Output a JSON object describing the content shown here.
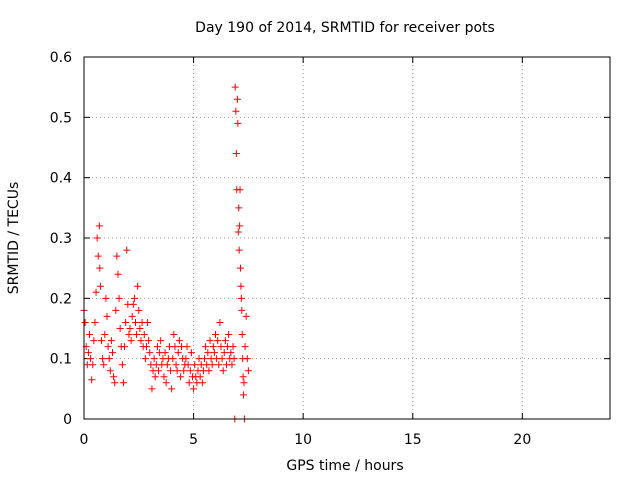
{
  "chart_data": {
    "type": "scatter",
    "title": "Day 190 of 2014, SRMTID for receiver pots",
    "xlabel": "GPS time / hours",
    "ylabel": "SRMTID / TECUs",
    "xlim": [
      0,
      24
    ],
    "ylim": [
      0,
      0.6
    ],
    "xticks": [
      "0",
      "5",
      "10",
      "15",
      "20"
    ],
    "yticks": [
      "0",
      "0.1",
      "0.2",
      "0.3",
      "0.4",
      "0.5",
      "0.6"
    ],
    "grid": true,
    "marker": "+",
    "color": "#ff0000",
    "series": [
      {
        "name": "pots",
        "points": [
          [
            0.0,
            0.18
          ],
          [
            0.05,
            0.16
          ],
          [
            0.1,
            0.12
          ],
          [
            0.15,
            0.09
          ],
          [
            0.2,
            0.11
          ],
          [
            0.25,
            0.14
          ],
          [
            0.3,
            0.1
          ],
          [
            0.35,
            0.065
          ],
          [
            0.4,
            0.09
          ],
          [
            0.45,
            0.13
          ],
          [
            0.5,
            0.16
          ],
          [
            0.55,
            0.21
          ],
          [
            0.6,
            0.3
          ],
          [
            0.65,
            0.27
          ],
          [
            0.7,
            0.32
          ],
          [
            0.72,
            0.25
          ],
          [
            0.75,
            0.22
          ],
          [
            0.8,
            0.13
          ],
          [
            0.85,
            0.1
          ],
          [
            0.9,
            0.09
          ],
          [
            0.95,
            0.14
          ],
          [
            1.0,
            0.2
          ],
          [
            1.05,
            0.17
          ],
          [
            1.1,
            0.12
          ],
          [
            1.15,
            0.1
          ],
          [
            1.2,
            0.08
          ],
          [
            1.25,
            0.13
          ],
          [
            1.3,
            0.11
          ],
          [
            1.35,
            0.07
          ],
          [
            1.4,
            0.06
          ],
          [
            1.45,
            0.18
          ],
          [
            1.5,
            0.27
          ],
          [
            1.55,
            0.24
          ],
          [
            1.6,
            0.2
          ],
          [
            1.65,
            0.15
          ],
          [
            1.7,
            0.12
          ],
          [
            1.75,
            0.09
          ],
          [
            1.8,
            0.06
          ],
          [
            1.85,
            0.12
          ],
          [
            1.9,
            0.16
          ],
          [
            1.95,
            0.28
          ],
          [
            2.0,
            0.19
          ],
          [
            2.05,
            0.14
          ],
          [
            2.1,
            0.15
          ],
          [
            2.15,
            0.13
          ],
          [
            2.2,
            0.17
          ],
          [
            2.25,
            0.19
          ],
          [
            2.3,
            0.2
          ],
          [
            2.35,
            0.16
          ],
          [
            2.4,
            0.14
          ],
          [
            2.45,
            0.22
          ],
          [
            2.5,
            0.18
          ],
          [
            2.55,
            0.15
          ],
          [
            2.6,
            0.13
          ],
          [
            2.65,
            0.16
          ],
          [
            2.7,
            0.12
          ],
          [
            2.75,
            0.14
          ],
          [
            2.8,
            0.1
          ],
          [
            2.85,
            0.12
          ],
          [
            2.9,
            0.16
          ],
          [
            2.95,
            0.13
          ],
          [
            3.0,
            0.11
          ],
          [
            3.05,
            0.09
          ],
          [
            3.1,
            0.05
          ],
          [
            3.15,
            0.08
          ],
          [
            3.2,
            0.1
          ],
          [
            3.25,
            0.07
          ],
          [
            3.3,
            0.09
          ],
          [
            3.35,
            0.12
          ],
          [
            3.4,
            0.08
          ],
          [
            3.45,
            0.11
          ],
          [
            3.5,
            0.13
          ],
          [
            3.55,
            0.09
          ],
          [
            3.6,
            0.1
          ],
          [
            3.65,
            0.07
          ],
          [
            3.7,
            0.11
          ],
          [
            3.75,
            0.06
          ],
          [
            3.8,
            0.09
          ],
          [
            3.85,
            0.1
          ],
          [
            3.9,
            0.12
          ],
          [
            3.95,
            0.08
          ],
          [
            4.0,
            0.05
          ],
          [
            4.05,
            0.1
          ],
          [
            4.1,
            0.14
          ],
          [
            4.15,
            0.12
          ],
          [
            4.2,
            0.09
          ],
          [
            4.25,
            0.08
          ],
          [
            4.3,
            0.11
          ],
          [
            4.35,
            0.13
          ],
          [
            4.4,
            0.07
          ],
          [
            4.45,
            0.12
          ],
          [
            4.5,
            0.1
          ],
          [
            4.55,
            0.08
          ],
          [
            4.6,
            0.09
          ],
          [
            4.65,
            0.1
          ],
          [
            4.7,
            0.12
          ],
          [
            4.75,
            0.09
          ],
          [
            4.8,
            0.06
          ],
          [
            4.85,
            0.08
          ],
          [
            4.9,
            0.11
          ],
          [
            4.95,
            0.07
          ],
          [
            5.0,
            0.05
          ],
          [
            5.05,
            0.09
          ],
          [
            5.1,
            0.07
          ],
          [
            5.15,
            0.06
          ],
          [
            5.2,
            0.08
          ],
          [
            5.25,
            0.1
          ],
          [
            5.3,
            0.07
          ],
          [
            5.35,
            0.09
          ],
          [
            5.4,
            0.06
          ],
          [
            5.45,
            0.08
          ],
          [
            5.5,
            0.1
          ],
          [
            5.55,
            0.12
          ],
          [
            5.6,
            0.09
          ],
          [
            5.65,
            0.11
          ],
          [
            5.7,
            0.08
          ],
          [
            5.75,
            0.13
          ],
          [
            5.8,
            0.1
          ],
          [
            5.85,
            0.09
          ],
          [
            5.9,
            0.12
          ],
          [
            5.95,
            0.11
          ],
          [
            6.0,
            0.14
          ],
          [
            6.05,
            0.1
          ],
          [
            6.1,
            0.13
          ],
          [
            6.15,
            0.09
          ],
          [
            6.2,
            0.16
          ],
          [
            6.25,
            0.12
          ],
          [
            6.3,
            0.1
          ],
          [
            6.35,
            0.08
          ],
          [
            6.4,
            0.11
          ],
          [
            6.45,
            0.13
          ],
          [
            6.5,
            0.09
          ],
          [
            6.55,
            0.12
          ],
          [
            6.6,
            0.14
          ],
          [
            6.65,
            0.1
          ],
          [
            6.7,
            0.11
          ],
          [
            6.75,
            0.09
          ],
          [
            6.8,
            0.12
          ],
          [
            6.85,
            0.1
          ],
          [
            6.88,
            0.0
          ],
          [
            6.9,
            0.55
          ],
          [
            6.93,
            0.51
          ],
          [
            6.95,
            0.44
          ],
          [
            6.97,
            0.38
          ],
          [
            7.0,
            0.53
          ],
          [
            7.02,
            0.49
          ],
          [
            7.04,
            0.31
          ],
          [
            7.06,
            0.35
          ],
          [
            7.08,
            0.28
          ],
          [
            7.1,
            0.32
          ],
          [
            7.12,
            0.38
          ],
          [
            7.14,
            0.25
          ],
          [
            7.16,
            0.22
          ],
          [
            7.18,
            0.2
          ],
          [
            7.2,
            0.18
          ],
          [
            7.22,
            0.14
          ],
          [
            7.24,
            0.1
          ],
          [
            7.26,
            0.07
          ],
          [
            7.28,
            0.04
          ],
          [
            7.3,
            0.06
          ],
          [
            7.32,
            0.0
          ],
          [
            7.35,
            0.12
          ],
          [
            7.4,
            0.17
          ],
          [
            7.45,
            0.1
          ],
          [
            7.5,
            0.08
          ]
        ]
      }
    ]
  }
}
